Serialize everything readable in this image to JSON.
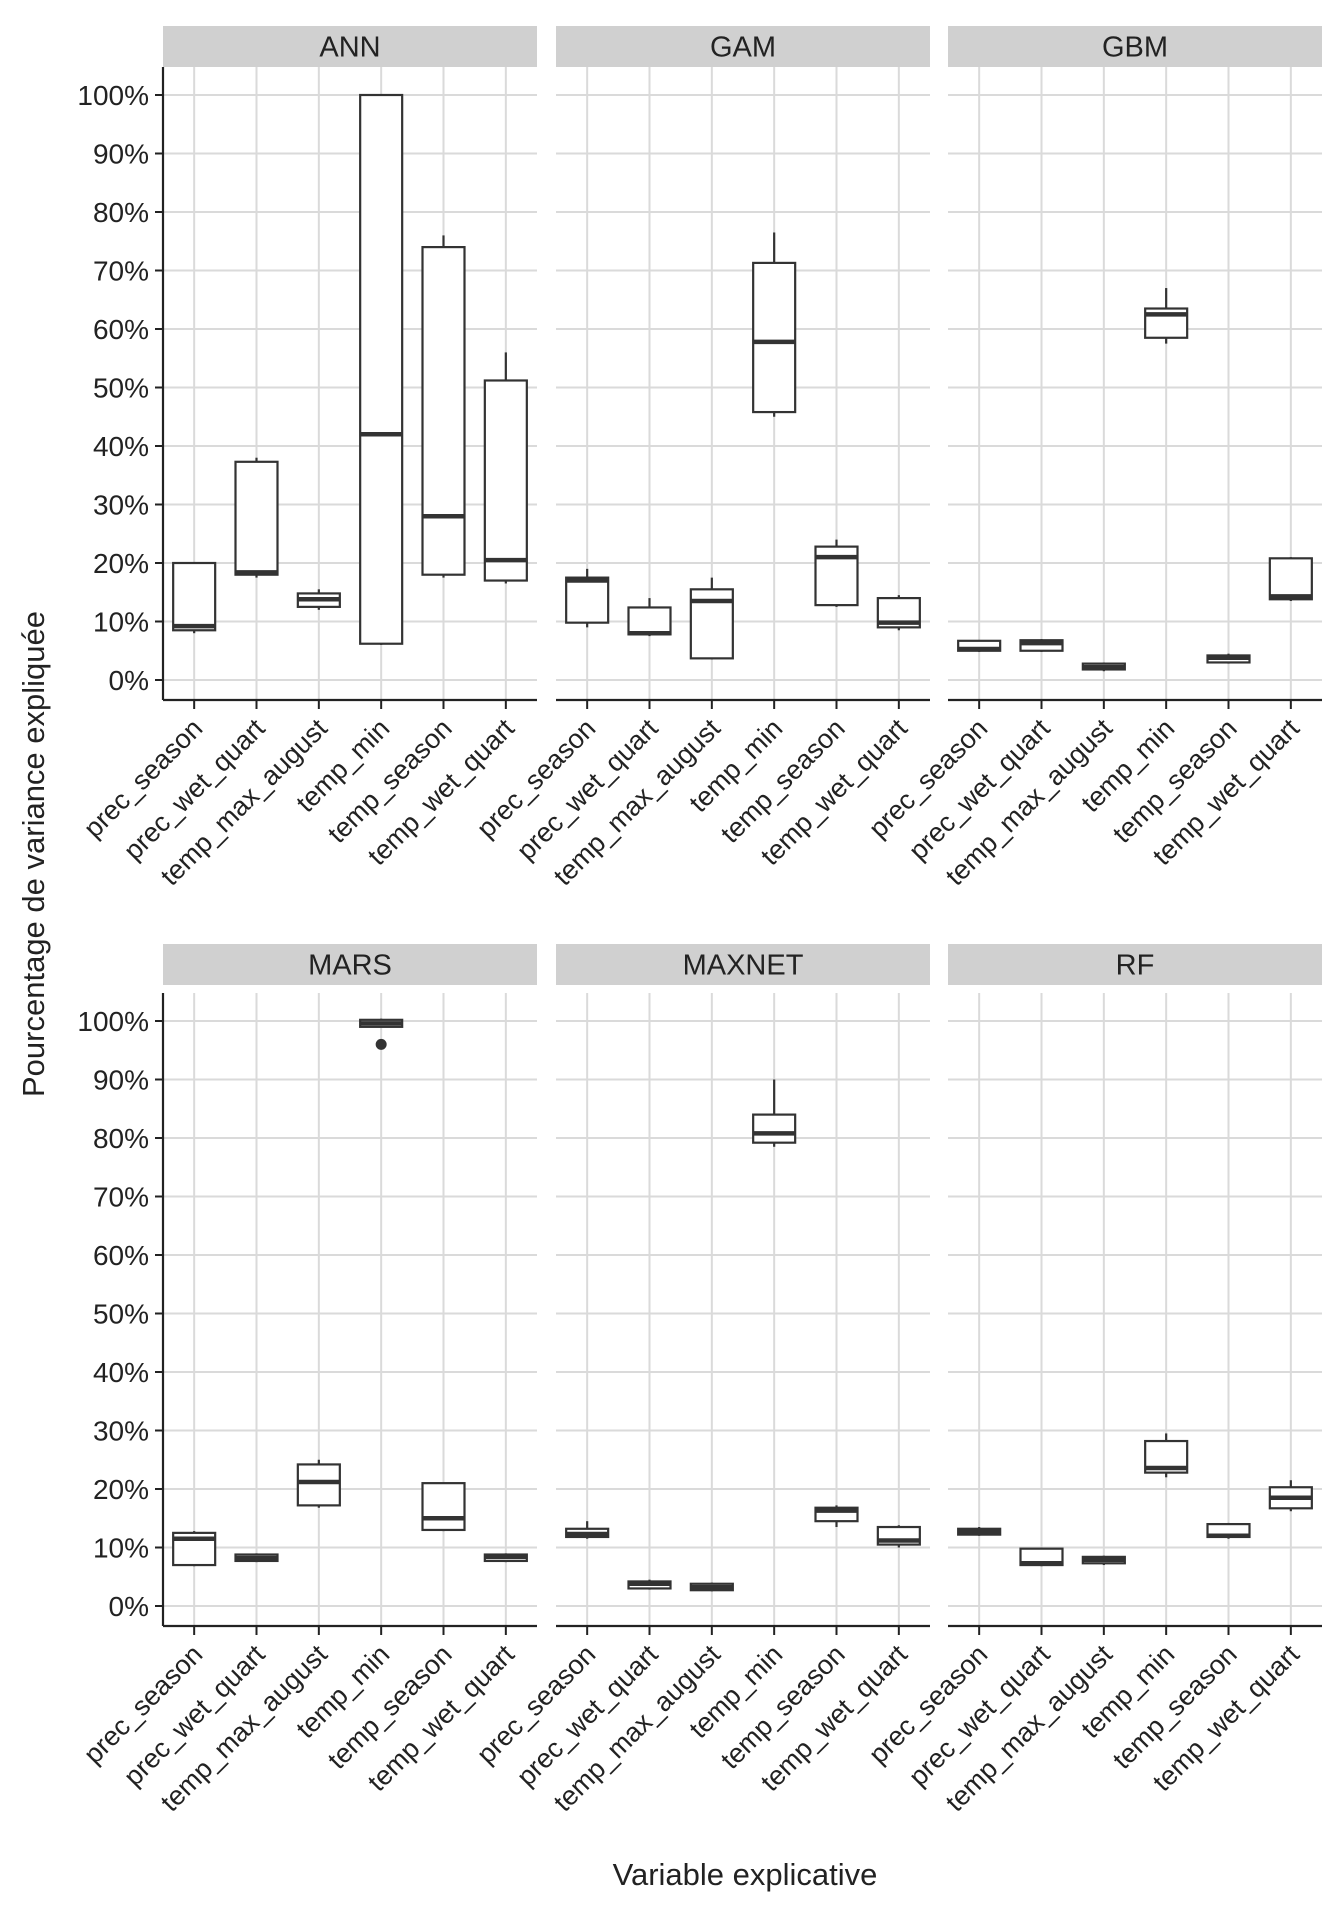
{
  "chart_data": {
    "type": "boxplot",
    "facet_layout": "2x3 grid",
    "ylabel": "Pourcentage de variance expliquée",
    "xlabel": "Variable explicative",
    "ylim": [
      0,
      100
    ],
    "y_ticks": [
      0,
      10,
      20,
      30,
      40,
      50,
      60,
      70,
      80,
      90,
      100
    ],
    "y_tick_labels": [
      "0%",
      "10%",
      "20%",
      "30%",
      "40%",
      "50%",
      "60%",
      "70%",
      "80%",
      "90%",
      "100%"
    ],
    "categories": [
      "prec_season",
      "prec_wet_quart",
      "temp_max_august",
      "temp_min",
      "temp_season",
      "temp_wet_quart"
    ],
    "grid": true,
    "panels": [
      {
        "title": "ANN",
        "boxes": [
          {
            "whisker_low": 8,
            "q1": 8.5,
            "median": 9.2,
            "q3": 20,
            "whisker_high": 20,
            "outliers": []
          },
          {
            "whisker_low": 17.5,
            "q1": 18,
            "median": 18.4,
            "q3": 37.3,
            "whisker_high": 38,
            "outliers": []
          },
          {
            "whisker_low": 12,
            "q1": 12.5,
            "median": 13.8,
            "q3": 14.8,
            "whisker_high": 15.5,
            "outliers": []
          },
          {
            "whisker_low": 6,
            "q1": 6.2,
            "median": 42,
            "q3": 100,
            "whisker_high": 100,
            "outliers": []
          },
          {
            "whisker_low": 17.5,
            "q1": 18,
            "median": 28,
            "q3": 74,
            "whisker_high": 76,
            "outliers": []
          },
          {
            "whisker_low": 16.5,
            "q1": 17,
            "median": 20.5,
            "q3": 51.2,
            "whisker_high": 56,
            "outliers": []
          }
        ]
      },
      {
        "title": "GAM",
        "boxes": [
          {
            "whisker_low": 9,
            "q1": 9.8,
            "median": 17,
            "q3": 17.5,
            "whisker_high": 19,
            "outliers": []
          },
          {
            "whisker_low": 7.5,
            "q1": 7.8,
            "median": 8,
            "q3": 12.4,
            "whisker_high": 14,
            "outliers": []
          },
          {
            "whisker_low": 3.5,
            "q1": 3.7,
            "median": 13.5,
            "q3": 15.5,
            "whisker_high": 17.5,
            "outliers": []
          },
          {
            "whisker_low": 45,
            "q1": 45.8,
            "median": 57.8,
            "q3": 71.3,
            "whisker_high": 76.5,
            "outliers": []
          },
          {
            "whisker_low": 12.5,
            "q1": 12.8,
            "median": 21,
            "q3": 22.8,
            "whisker_high": 24,
            "outliers": []
          },
          {
            "whisker_low": 8.5,
            "q1": 9,
            "median": 9.8,
            "q3": 14,
            "whisker_high": 14.5,
            "outliers": []
          }
        ]
      },
      {
        "title": "GBM",
        "boxes": [
          {
            "whisker_low": 4.8,
            "q1": 5,
            "median": 5.3,
            "q3": 6.7,
            "whisker_high": 6.7,
            "outliers": []
          },
          {
            "whisker_low": 4.8,
            "q1": 5,
            "median": 6.3,
            "q3": 6.8,
            "whisker_high": 7,
            "outliers": []
          },
          {
            "whisker_low": 1.5,
            "q1": 1.8,
            "median": 2.2,
            "q3": 2.8,
            "whisker_high": 3,
            "outliers": []
          },
          {
            "whisker_low": 57.5,
            "q1": 58.5,
            "median": 62.5,
            "q3": 63.5,
            "whisker_high": 67,
            "outliers": []
          },
          {
            "whisker_low": 2.8,
            "q1": 3,
            "median": 3.8,
            "q3": 4.2,
            "whisker_high": 4.5,
            "outliers": []
          },
          {
            "whisker_low": 13.5,
            "q1": 13.8,
            "median": 14.3,
            "q3": 20.8,
            "whisker_high": 21,
            "outliers": []
          }
        ]
      },
      {
        "title": "MARS",
        "boxes": [
          {
            "whisker_low": 6.8,
            "q1": 7,
            "median": 11.5,
            "q3": 12.5,
            "whisker_high": 12.8,
            "outliers": []
          },
          {
            "whisker_low": 7.5,
            "q1": 7.7,
            "median": 8.2,
            "q3": 8.8,
            "whisker_high": 9,
            "outliers": []
          },
          {
            "whisker_low": 16.8,
            "q1": 17.2,
            "median": 21.2,
            "q3": 24.2,
            "whisker_high": 25,
            "outliers": []
          },
          {
            "whisker_low": 99,
            "q1": 99,
            "median": 99.6,
            "q3": 100.2,
            "whisker_high": 100.4,
            "outliers": [
              96
            ]
          },
          {
            "whisker_low": 12.8,
            "q1": 13,
            "median": 15,
            "q3": 21,
            "whisker_high": 21,
            "outliers": []
          },
          {
            "whisker_low": 7.5,
            "q1": 7.7,
            "median": 8.4,
            "q3": 8.8,
            "whisker_high": 9,
            "outliers": []
          }
        ]
      },
      {
        "title": "MAXNET",
        "boxes": [
          {
            "whisker_low": 11.5,
            "q1": 11.8,
            "median": 12.3,
            "q3": 13.2,
            "whisker_high": 14.5,
            "outliers": []
          },
          {
            "whisker_low": 2.8,
            "q1": 3,
            "median": 3.8,
            "q3": 4.2,
            "whisker_high": 4.5,
            "outliers": []
          },
          {
            "whisker_low": 2.5,
            "q1": 2.7,
            "median": 3.2,
            "q3": 3.8,
            "whisker_high": 4,
            "outliers": []
          },
          {
            "whisker_low": 78.5,
            "q1": 79.2,
            "median": 80.8,
            "q3": 84,
            "whisker_high": 90,
            "outliers": []
          },
          {
            "whisker_low": 13.5,
            "q1": 14.5,
            "median": 16.3,
            "q3": 16.8,
            "whisker_high": 17.2,
            "outliers": []
          },
          {
            "whisker_low": 10,
            "q1": 10.5,
            "median": 11.2,
            "q3": 13.5,
            "whisker_high": 13.8,
            "outliers": []
          }
        ]
      },
      {
        "title": "RF",
        "boxes": [
          {
            "whisker_low": 12,
            "q1": 12.2,
            "median": 12.7,
            "q3": 13.2,
            "whisker_high": 13.5,
            "outliers": []
          },
          {
            "whisker_low": 6.8,
            "q1": 7,
            "median": 7.3,
            "q3": 9.8,
            "whisker_high": 10,
            "outliers": []
          },
          {
            "whisker_low": 7,
            "q1": 7.3,
            "median": 7.9,
            "q3": 8.4,
            "whisker_high": 8.6,
            "outliers": []
          },
          {
            "whisker_low": 22,
            "q1": 22.8,
            "median": 23.6,
            "q3": 28.2,
            "whisker_high": 29.5,
            "outliers": []
          },
          {
            "whisker_low": 11.5,
            "q1": 11.8,
            "median": 12,
            "q3": 14,
            "whisker_high": 14.2,
            "outliers": []
          },
          {
            "whisker_low": 16.2,
            "q1": 16.7,
            "median": 18.5,
            "q3": 20.3,
            "whisker_high": 21.5,
            "outliers": []
          }
        ]
      }
    ]
  },
  "colors": {
    "strip_fill": "#d0d0d0",
    "grid": "#dadada",
    "box_stroke": "#333333",
    "box_fill": "#ffffff",
    "axis": "#222222"
  }
}
